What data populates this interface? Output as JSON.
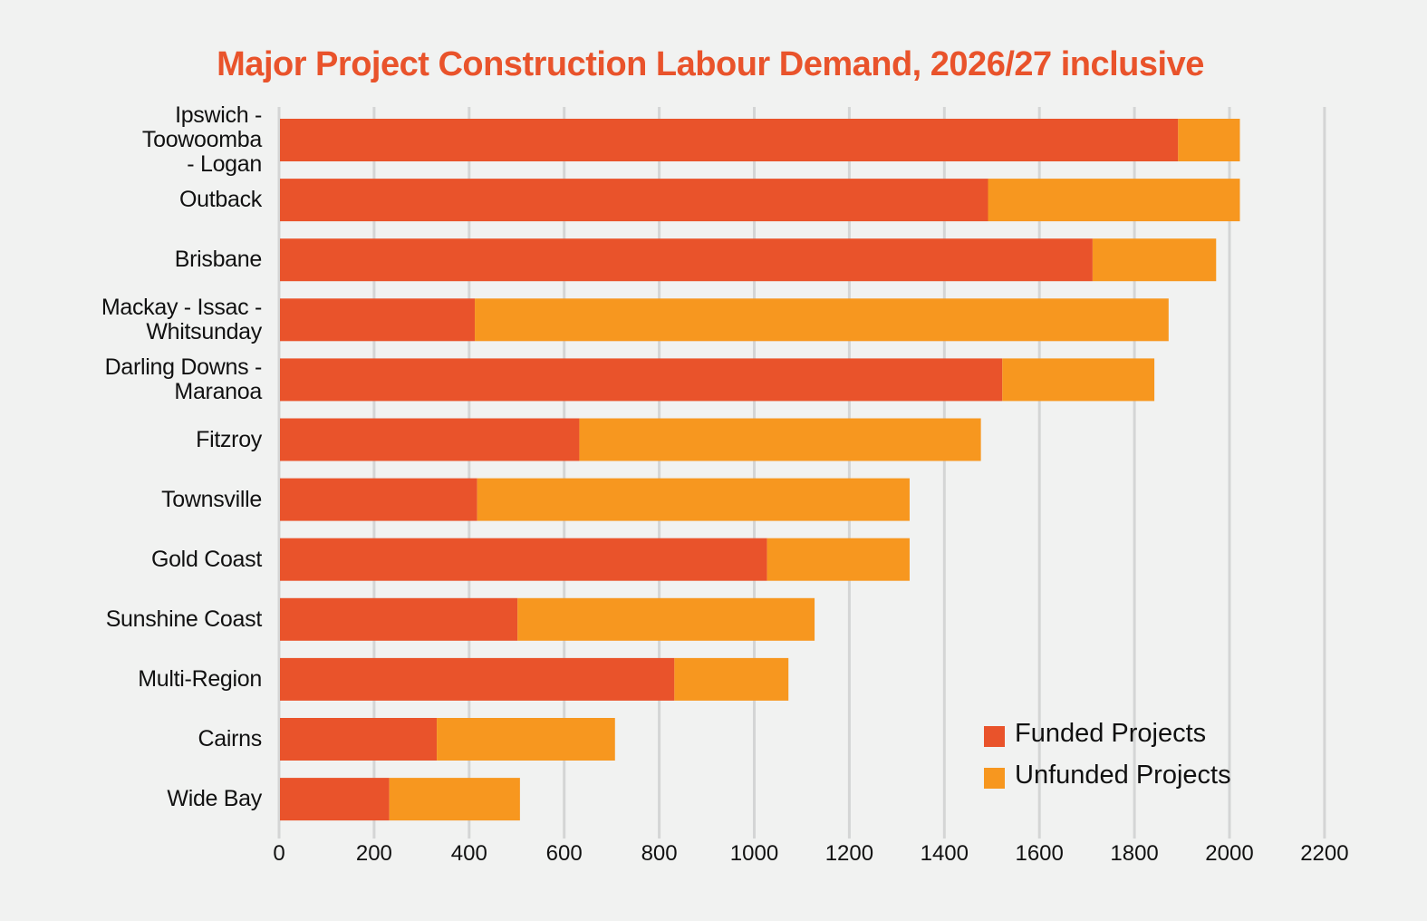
{
  "colors": {
    "title": "#E9532B",
    "funded": "#E9532B",
    "unfunded": "#F7971F",
    "grid": "#D4D5D5",
    "background": "#F1F2F1"
  },
  "chart_data": {
    "type": "bar",
    "orientation": "horizontal",
    "stacked": true,
    "title": "Major Project Construction Labour Demand, 2026/27 inclusive",
    "xlabel": "",
    "ylabel": "",
    "xlim": [
      0,
      2200
    ],
    "xticks": [
      0,
      200,
      400,
      600,
      800,
      1000,
      1200,
      1400,
      1600,
      1800,
      2000,
      2200
    ],
    "xtick_labels": [
      "0",
      "200",
      "400",
      "600",
      "800",
      "1000",
      "1200",
      "1400",
      "1600",
      "1800",
      "2000",
      "2200"
    ],
    "grid": "vertical",
    "legend_position": "bottom-right",
    "categories": [
      "Ipswich -\nToowoomba\n- Logan",
      "Outback",
      "Brisbane",
      "Mackay - Issac -\nWhitsunday",
      "Darling Downs -\nMaranoa",
      "Fitzroy",
      "Townsville",
      "Gold Coast",
      "Sunshine Coast",
      "Multi-Region",
      "Cairns",
      "Wide Bay"
    ],
    "series": [
      {
        "name": "Funded Projects",
        "color": "#E9532B",
        "values": [
          1890,
          1490,
          1710,
          410,
          1520,
          630,
          415,
          1025,
          500,
          830,
          330,
          230
        ]
      },
      {
        "name": "Unfunded Projects",
        "color": "#F7971F",
        "values": [
          130,
          530,
          260,
          1460,
          320,
          845,
          910,
          300,
          625,
          240,
          375,
          275
        ]
      }
    ],
    "totals": [
      2020,
      2020,
      1970,
      1870,
      1840,
      1475,
      1325,
      1325,
      1125,
      1070,
      705,
      505
    ]
  }
}
